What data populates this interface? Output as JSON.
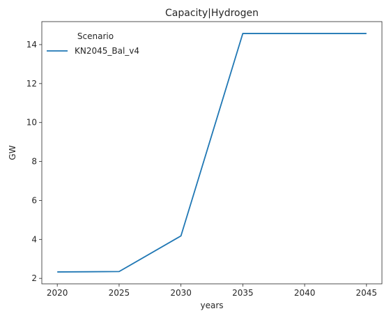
{
  "chart_data": {
    "type": "line",
    "title": "Capacity|Hydrogen",
    "xlabel": "years",
    "ylabel": "GW",
    "x": [
      2020,
      2025,
      2030,
      2035,
      2040,
      2045
    ],
    "series": [
      {
        "name": "KN2045_Bal_v4",
        "color": "#1f77b4",
        "values": [
          2.33,
          2.35,
          4.18,
          14.57,
          14.57,
          14.57
        ]
      }
    ],
    "xticks": [
      2020,
      2025,
      2030,
      2035,
      2040,
      2045
    ],
    "yticks": [
      2,
      4,
      6,
      8,
      10,
      12,
      14
    ],
    "xlim": [
      2018.75,
      2046.25
    ],
    "ylim": [
      1.72,
      15.18
    ],
    "grid": false,
    "legend": {
      "title": "Scenario",
      "placement": "top-left"
    }
  }
}
